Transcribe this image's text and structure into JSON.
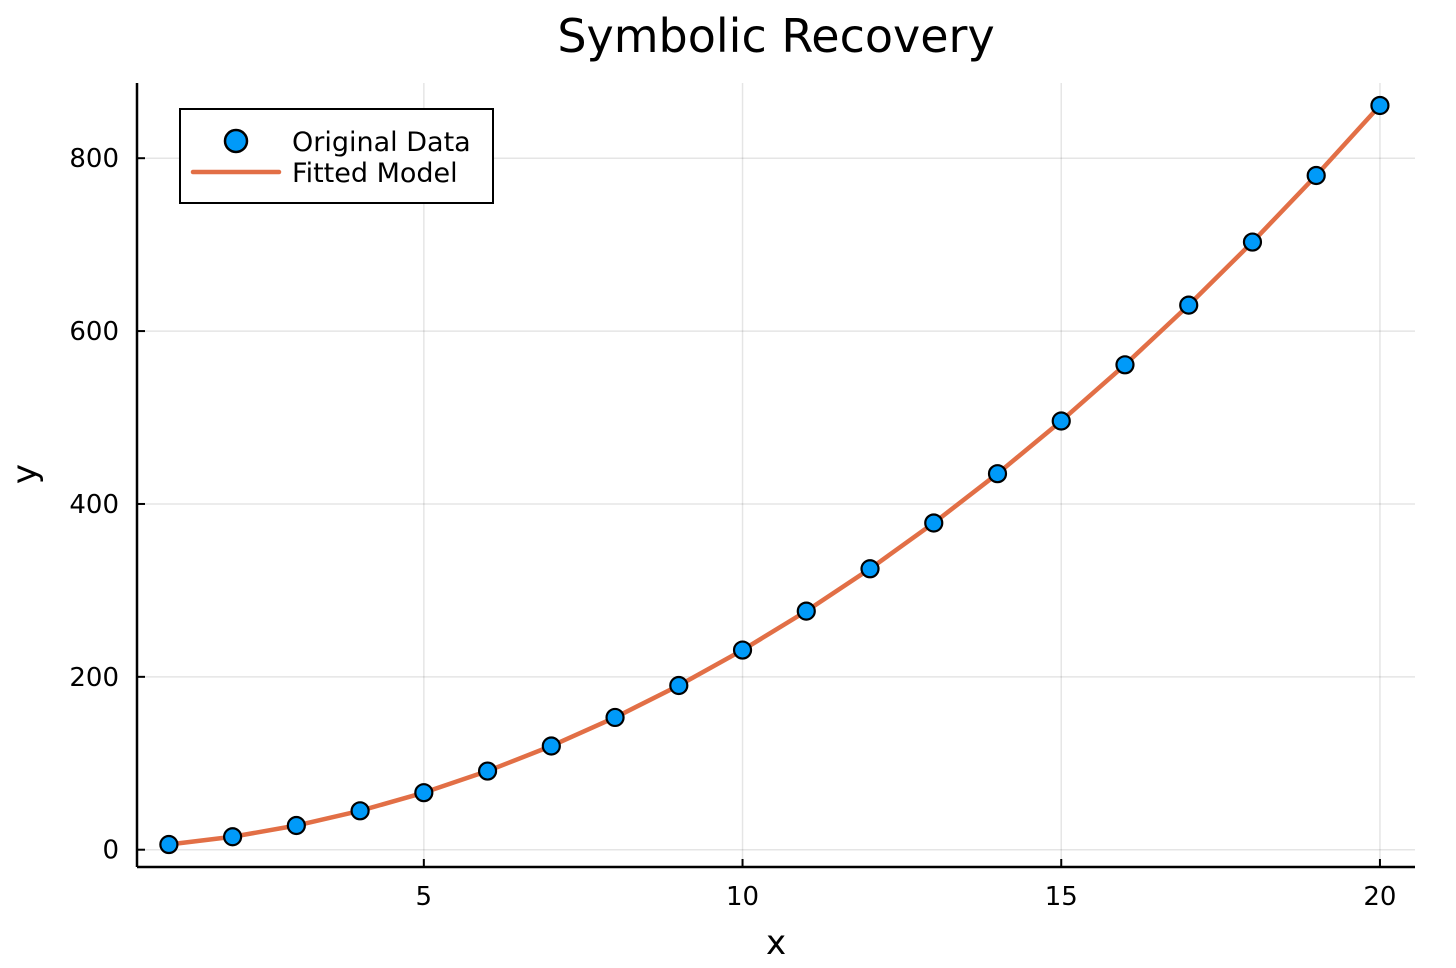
{
  "chart_data": {
    "type": "scatter",
    "title": "Symbolic Recovery",
    "xlabel": "x",
    "ylabel": "y",
    "xlim": [
      0.5,
      20.55
    ],
    "ylim": [
      -20,
      887
    ],
    "xticks": [
      5,
      10,
      15,
      20
    ],
    "yticks": [
      0,
      200,
      400,
      600,
      800
    ],
    "grid": true,
    "legend_position": "top-left",
    "series": [
      {
        "name": "Original Data",
        "kind": "scatter",
        "color": "#009af9",
        "x": [
          1,
          2,
          3,
          4,
          5,
          6,
          7,
          8,
          9,
          10,
          11,
          12,
          13,
          14,
          15,
          16,
          17,
          18,
          19,
          20
        ],
        "y": [
          6,
          15,
          28,
          45,
          66,
          91,
          120,
          153,
          190,
          231,
          276,
          325,
          378,
          435,
          496,
          561,
          630,
          703,
          780,
          861
        ]
      },
      {
        "name": "Fitted Model",
        "kind": "line",
        "color": "#e26f46",
        "x": [
          1,
          2,
          3,
          4,
          5,
          6,
          7,
          8,
          9,
          10,
          11,
          12,
          13,
          14,
          15,
          16,
          17,
          18,
          19,
          20
        ],
        "y": [
          6,
          15,
          28,
          45,
          66,
          91,
          120,
          153,
          190,
          231,
          276,
          325,
          378,
          435,
          496,
          561,
          630,
          703,
          780,
          861
        ]
      }
    ]
  }
}
